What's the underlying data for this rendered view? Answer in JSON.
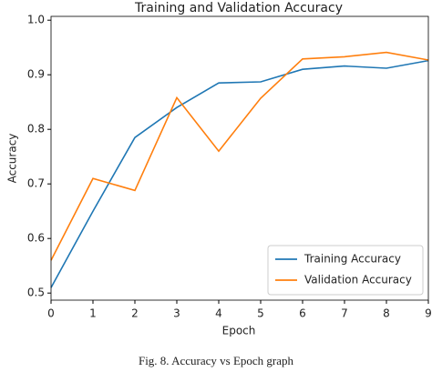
{
  "chart_data": {
    "type": "line",
    "title": "Training and Validation Accuracy",
    "xlabel": "Epoch",
    "ylabel": "Accuracy",
    "x": [
      0,
      1,
      2,
      3,
      4,
      5,
      6,
      7,
      8,
      9
    ],
    "series": [
      {
        "name": "Training Accuracy",
        "color": "#1f77b4",
        "values": [
          0.51,
          0.65,
          0.785,
          0.84,
          0.885,
          0.887,
          0.91,
          0.916,
          0.912,
          0.926
        ]
      },
      {
        "name": "Validation Accuracy",
        "color": "#ff7f0e",
        "values": [
          0.56,
          0.71,
          0.688,
          0.858,
          0.76,
          0.857,
          0.929,
          0.933,
          0.941,
          0.927
        ]
      }
    ],
    "xlim": [
      0,
      9
    ],
    "xticks": [
      0,
      1,
      2,
      3,
      4,
      5,
      6,
      7,
      8,
      9
    ],
    "ylim": [
      0.487,
      1.007
    ],
    "yticks": [
      0.5,
      0.6,
      0.7,
      0.8,
      0.9,
      {
        "value": 1,
        "label": "1.0"
      }
    ],
    "legend": "lower right"
  },
  "caption": "Fig. 8.   Accuracy vs Epoch graph"
}
